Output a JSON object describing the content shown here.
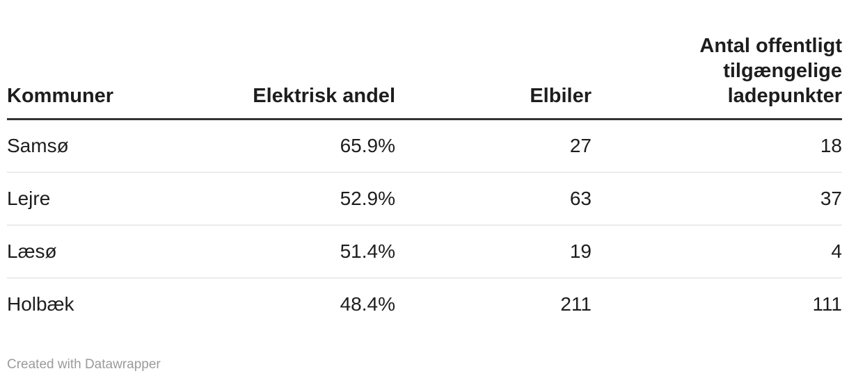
{
  "chart_data": {
    "type": "table",
    "columns": [
      {
        "label": "Kommuner",
        "align": "left"
      },
      {
        "label": "Elektrisk andel",
        "align": "right"
      },
      {
        "label": "Elbiler",
        "align": "right"
      },
      {
        "label": "Antal offentligt tilgængelige ladepunkter",
        "align": "right"
      }
    ],
    "rows": [
      [
        "Samsø",
        "65.9%",
        "27",
        "18"
      ],
      [
        "Lejre",
        "52.9%",
        "63",
        "37"
      ],
      [
        "Læsø",
        "51.4%",
        "19",
        "4"
      ],
      [
        "Holbæk",
        "48.4%",
        "211",
        "111"
      ]
    ]
  },
  "footer": {
    "attribution": "Created with Datawrapper"
  },
  "colors": {
    "text": "#1d1d1d",
    "header_rule": "#333333",
    "row_divider": "#ebebeb",
    "footer_text": "#9b9b9b",
    "background": "#ffffff"
  }
}
